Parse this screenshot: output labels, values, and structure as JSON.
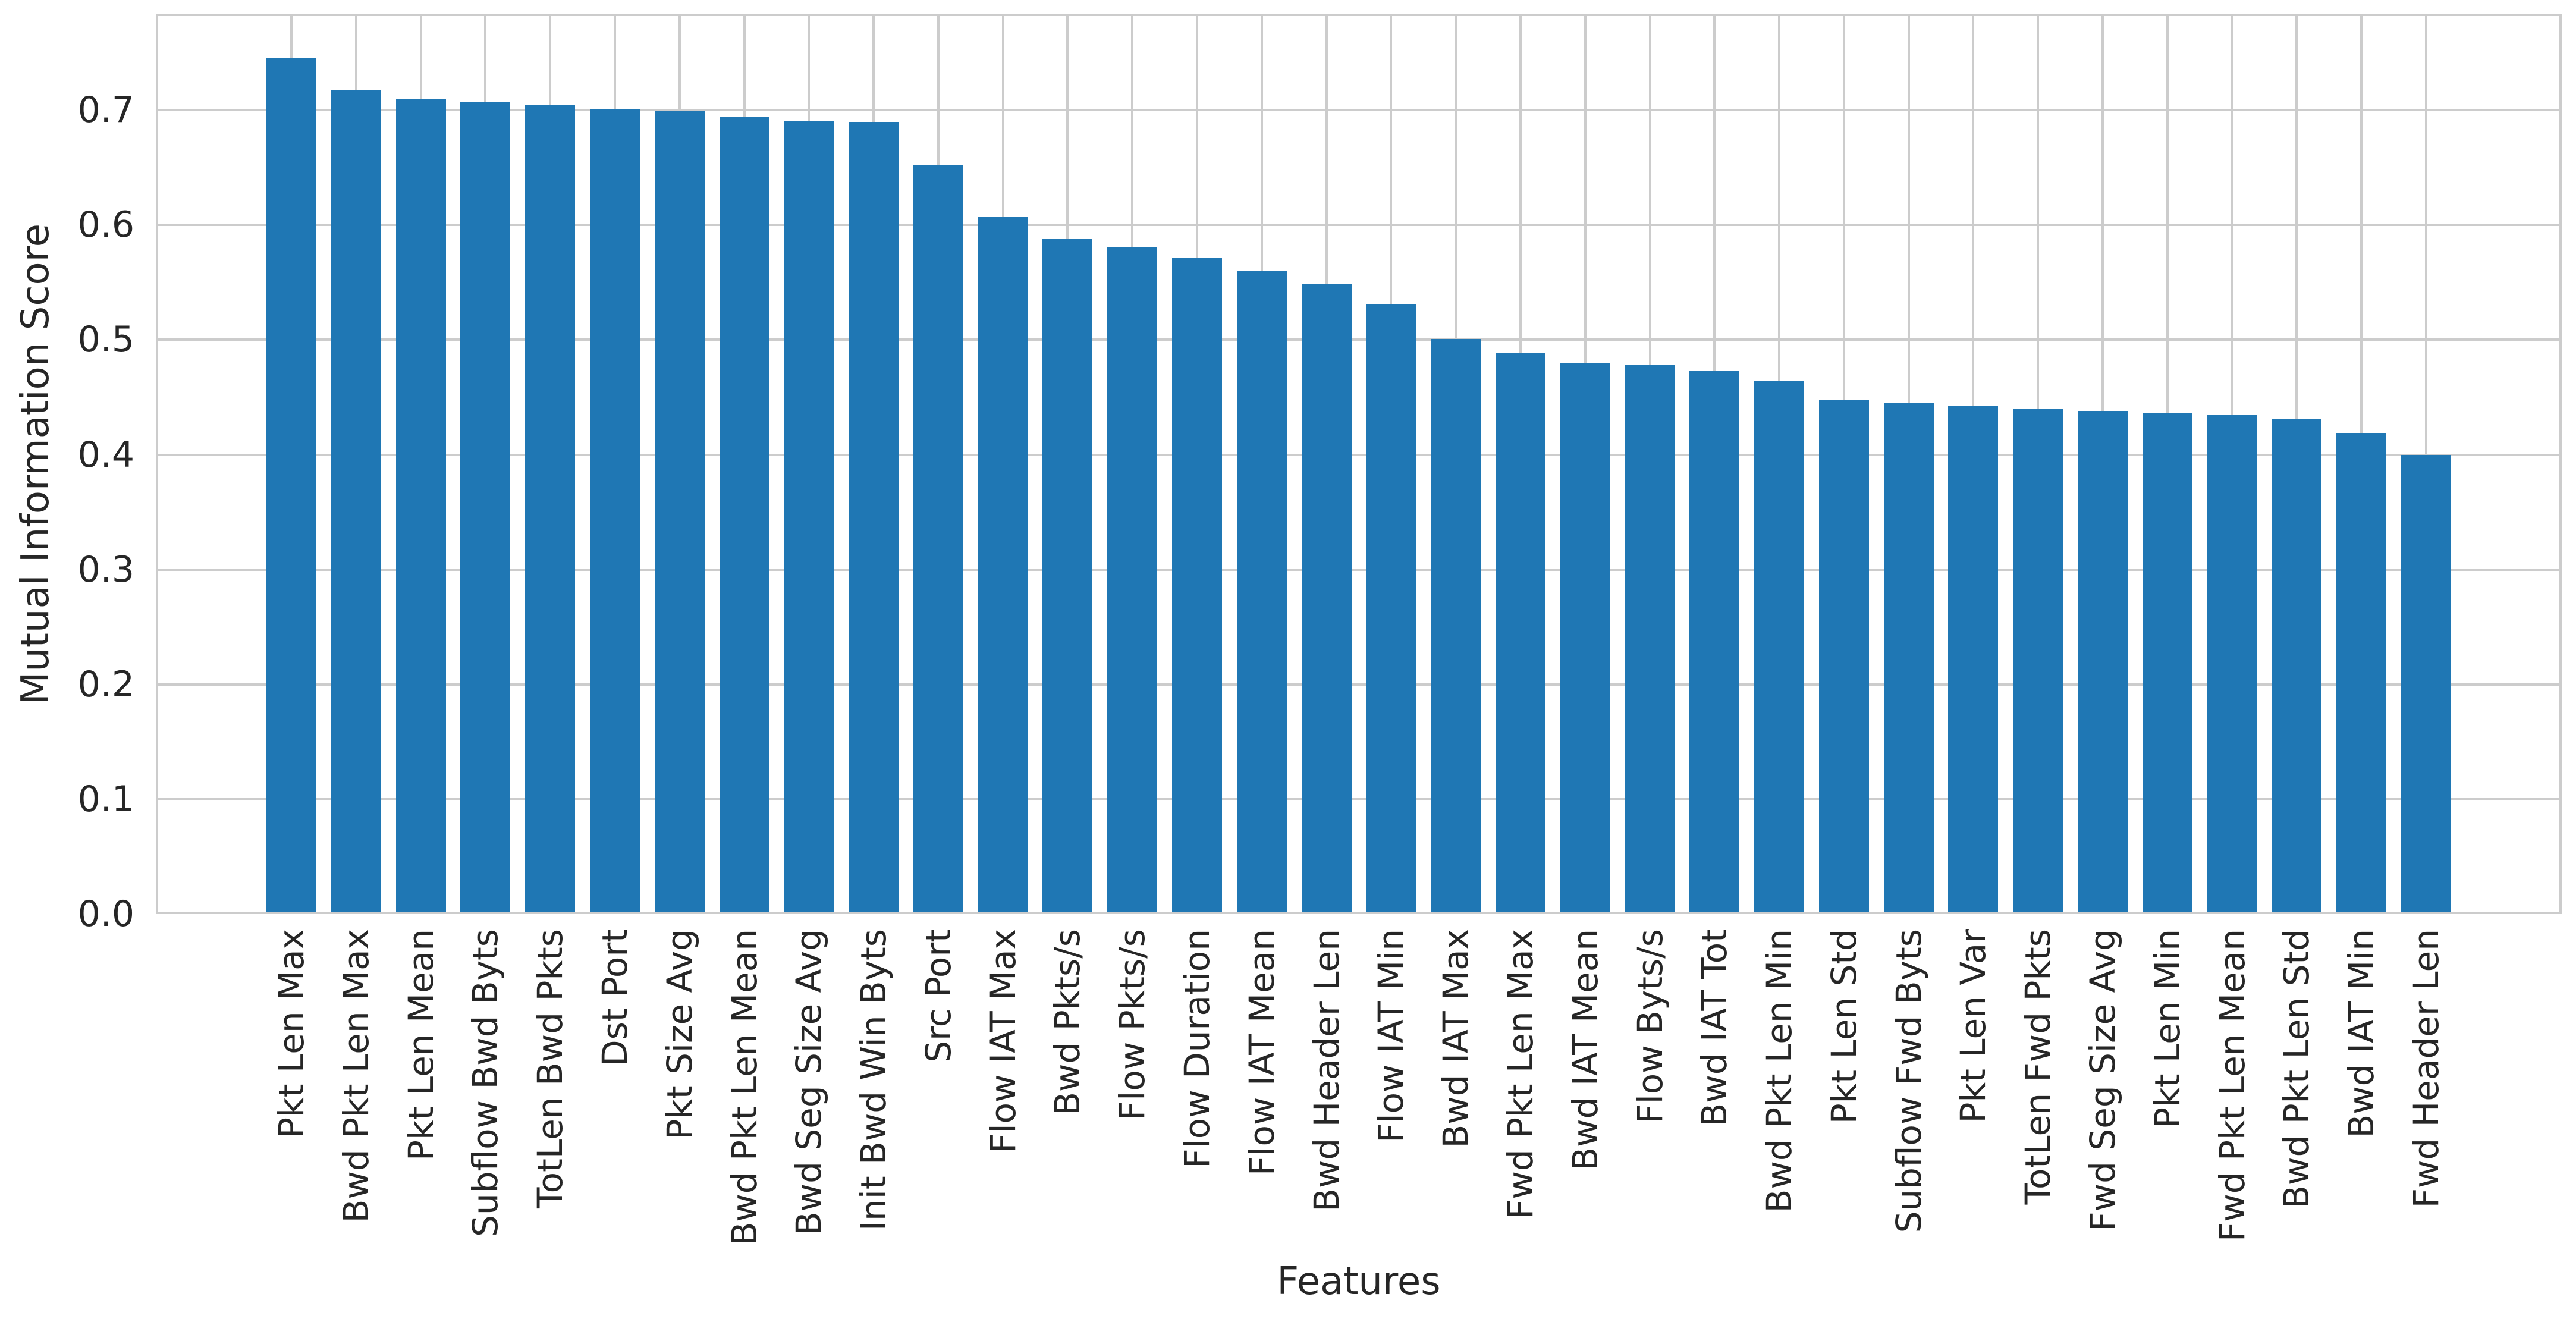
{
  "chart_data": {
    "type": "bar",
    "title": "",
    "xlabel": "Features",
    "ylabel": "Mutual Information Score",
    "categories": [
      "Pkt Len Max",
      "Bwd Pkt Len Max",
      "Pkt Len Mean",
      "Subflow Bwd Byts",
      "TotLen Bwd Pkts",
      "Dst Port",
      "Pkt Size Avg",
      "Bwd Pkt Len Mean",
      "Bwd Seg Size Avg",
      "Init Bwd Win Byts",
      "Src Port",
      "Flow IAT Max",
      "Bwd Pkts/s",
      "Flow Pkts/s",
      "Flow Duration",
      "Flow IAT Mean",
      "Bwd Header Len",
      "Flow IAT Min",
      "Bwd IAT Max",
      "Fwd Pkt Len Max",
      "Bwd IAT Mean",
      "Flow Byts/s",
      "Bwd IAT Tot",
      "Bwd Pkt Len Min",
      "Pkt Len Std",
      "Subflow Fwd Byts",
      "Pkt Len Var",
      "TotLen Fwd Pkts",
      "Fwd Seg Size Avg",
      "Pkt Len Min",
      "Fwd Pkt Len Mean",
      "Bwd Pkt Len Std",
      "Bwd IAT Min",
      "Fwd Header Len"
    ],
    "values": [
      0.745,
      0.717,
      0.71,
      0.707,
      0.705,
      0.701,
      0.699,
      0.694,
      0.691,
      0.69,
      0.652,
      0.607,
      0.588,
      0.581,
      0.571,
      0.56,
      0.549,
      0.531,
      0.501,
      0.489,
      0.48,
      0.478,
      0.473,
      0.464,
      0.448,
      0.445,
      0.442,
      0.44,
      0.438,
      0.436,
      0.435,
      0.431,
      0.419,
      0.4
    ],
    "yticks": [
      "0.0",
      "0.1",
      "0.2",
      "0.3",
      "0.4",
      "0.5",
      "0.6",
      "0.7"
    ],
    "ylim": [
      0,
      0.784
    ],
    "grid": true,
    "legend": "none",
    "bar_color": "#1f77b4",
    "grid_color": "#cccccc",
    "text_color": "#262626"
  }
}
